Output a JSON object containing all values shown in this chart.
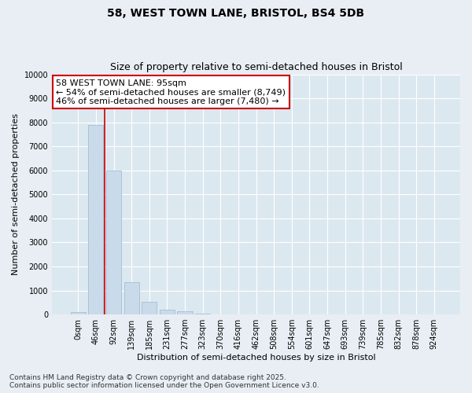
{
  "title_line1": "58, WEST TOWN LANE, BRISTOL, BS4 5DB",
  "title_line2": "Size of property relative to semi-detached houses in Bristol",
  "xlabel": "Distribution of semi-detached houses by size in Bristol",
  "ylabel": "Number of semi-detached properties",
  "categories": [
    "0sqm",
    "46sqm",
    "92sqm",
    "139sqm",
    "185sqm",
    "231sqm",
    "277sqm",
    "323sqm",
    "370sqm",
    "416sqm",
    "462sqm",
    "508sqm",
    "554sqm",
    "601sqm",
    "647sqm",
    "693sqm",
    "739sqm",
    "785sqm",
    "832sqm",
    "878sqm",
    "924sqm"
  ],
  "bar_heights": [
    100,
    7900,
    6000,
    1350,
    530,
    200,
    130,
    50,
    12,
    5,
    2,
    1,
    0,
    0,
    0,
    0,
    0,
    0,
    0,
    0,
    0
  ],
  "bar_color": "#c9daea",
  "bar_edgecolor": "#9ab8cc",
  "vline_x": 1.5,
  "vline_color": "#cc0000",
  "annotation_text": "58 WEST TOWN LANE: 95sqm\n← 54% of semi-detached houses are smaller (8,749)\n46% of semi-detached houses are larger (7,480) →",
  "annotation_box_facecolor": "#ffffff",
  "annotation_box_edgecolor": "#cc0000",
  "ylim": [
    0,
    10000
  ],
  "yticks": [
    0,
    1000,
    2000,
    3000,
    4000,
    5000,
    6000,
    7000,
    8000,
    9000,
    10000
  ],
  "footnote": "Contains HM Land Registry data © Crown copyright and database right 2025.\nContains public sector information licensed under the Open Government Licence v3.0.",
  "background_color": "#e8eef4",
  "plot_background_color": "#dce8f0",
  "grid_color": "#ffffff",
  "title_fontsize": 10,
  "subtitle_fontsize": 9,
  "axis_label_fontsize": 8,
  "tick_fontsize": 7,
  "annotation_fontsize": 8,
  "footnote_fontsize": 6.5
}
